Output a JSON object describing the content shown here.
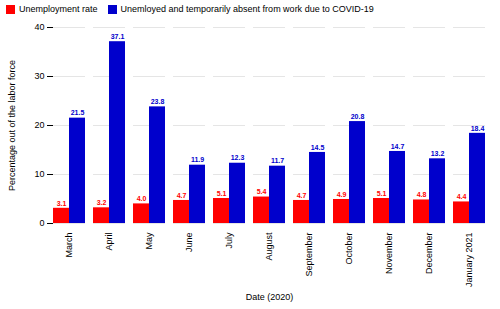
{
  "chart_data": {
    "type": "bar",
    "categories": [
      "March",
      "April",
      "May",
      "June",
      "July",
      "August",
      "September",
      "October",
      "November",
      "December",
      "January 2021"
    ],
    "series": [
      {
        "name": "Unemployment rate",
        "color": "#FF0000",
        "values": [
          3.1,
          3.2,
          4.0,
          4.7,
          5.1,
          5.4,
          4.7,
          4.9,
          5.1,
          4.8,
          4.4
        ],
        "value_labels": [
          "3.1",
          "3.2",
          "4.0",
          "4.7",
          "5.1",
          "5.4",
          "4.7",
          "4.9",
          "5.1",
          "4.8",
          "4.4"
        ]
      },
      {
        "name": "Unemloyed and temporarily absent from work due to COVID-19",
        "color": "#0000CC",
        "values": [
          21.5,
          37.1,
          23.8,
          11.9,
          12.3,
          11.7,
          14.5,
          20.8,
          14.7,
          13.2,
          18.4
        ]
      }
    ],
    "xlabel": "Date (2020)",
    "ylabel": "Percentage out of the labor force",
    "ylim": [
      0,
      40
    ],
    "yticks": [
      0,
      10,
      20,
      30,
      40
    ],
    "grid": true,
    "legend": "upper left",
    "data_labels": true
  }
}
